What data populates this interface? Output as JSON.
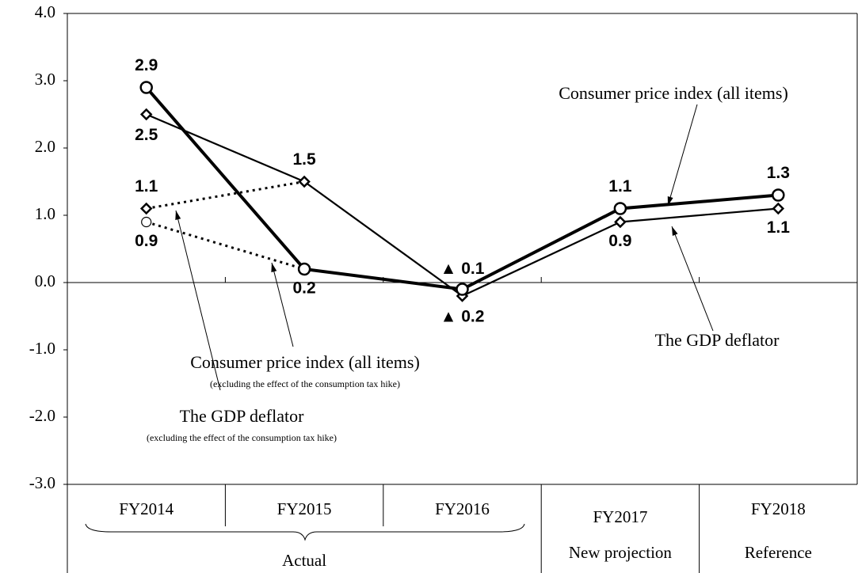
{
  "chart_data": {
    "type": "line",
    "categories": [
      "FY2014",
      "FY2015",
      "FY2016",
      "FY2017",
      "FY2018"
    ],
    "groups": [
      "Actual",
      "New projection",
      "Reference"
    ],
    "ylim": [
      -3,
      4
    ],
    "yticks": [
      {
        "value": -3,
        "label": "-3.0"
      },
      {
        "value": -2,
        "label": "-2.0"
      },
      {
        "value": -1,
        "label": "-1.0"
      },
      {
        "value": 0,
        "label": "0.0"
      },
      {
        "value": 1,
        "label": "1.0"
      },
      {
        "value": 2,
        "label": "2.0"
      },
      {
        "value": 3,
        "label": "3.0"
      },
      {
        "value": 4,
        "label": "4.0"
      }
    ],
    "series": [
      {
        "name": "Consumer price index (all items)",
        "color": "#000000",
        "values": [
          2.9,
          0.2,
          -0.1,
          1.1,
          1.3
        ],
        "value_labels": [
          "2.9",
          "0.2",
          "▲ 0.1",
          "1.1",
          "1.3"
        ]
      },
      {
        "name": "The GDP deflator",
        "color": "#000000",
        "values": [
          2.5,
          1.5,
          -0.2,
          0.9,
          1.1
        ],
        "value_labels": [
          "2.5",
          "1.5",
          "▲ 0.2",
          "0.9",
          "1.1"
        ]
      },
      {
        "name": "Consumer price index (all items)",
        "note": "(excluding the effect of the consumption tax hike)",
        "color": "#000000",
        "values": [
          0.9,
          0.2,
          null,
          null,
          null
        ],
        "value_labels": [
          "0.9",
          null,
          null,
          null,
          null
        ]
      },
      {
        "name": "The GDP deflator",
        "note": "(excluding the effect of the consumption tax hike)",
        "color": "#000000",
        "values": [
          1.1,
          1.5,
          null,
          null,
          null
        ],
        "value_labels": [
          "1.1",
          null,
          null,
          null,
          null
        ]
      }
    ]
  }
}
